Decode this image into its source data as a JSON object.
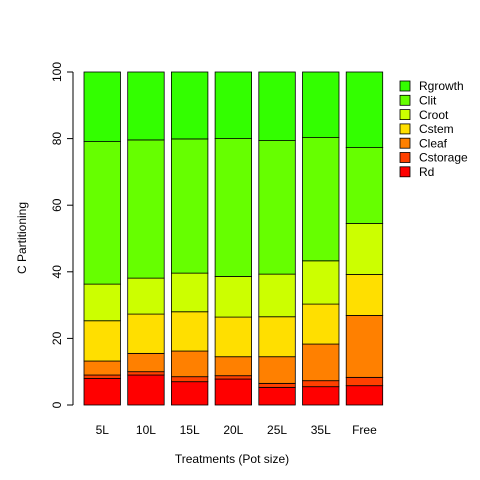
{
  "chart_data": {
    "type": "bar",
    "stacked": true,
    "xlabel": "Treatments (Pot size)",
    "ylabel": "C Partitioning",
    "ylim": [
      0,
      100
    ],
    "yticks": [
      "0",
      "20",
      "40",
      "60",
      "80",
      "100"
    ],
    "grid": false,
    "legend_position": "right",
    "categories": [
      "5L",
      "10L",
      "15L",
      "20L",
      "25L",
      "35L",
      "Free"
    ],
    "series": [
      {
        "name": "Rd",
        "color": "#ff0000",
        "values": [
          8.0,
          9.0,
          7.0,
          7.8,
          5.3,
          5.5,
          5.8
        ]
      },
      {
        "name": "Cstorage",
        "color": "#ff4000",
        "values": [
          1.0,
          1.0,
          1.5,
          1.0,
          1.2,
          1.8,
          2.5
        ]
      },
      {
        "name": "Cleaf",
        "color": "#ff8000",
        "values": [
          4.2,
          5.5,
          7.7,
          5.7,
          8.0,
          11.0,
          18.6
        ]
      },
      {
        "name": "Cstem",
        "color": "#ffdf00",
        "values": [
          12.1,
          11.8,
          11.8,
          11.9,
          12.0,
          12.0,
          12.3
        ]
      },
      {
        "name": "Croot",
        "color": "#ccff00",
        "values": [
          11.0,
          10.8,
          11.6,
          12.2,
          12.8,
          13.0,
          15.3
        ]
      },
      {
        "name": "Clit",
        "color": "#66ff00",
        "values": [
          42.8,
          41.5,
          40.3,
          41.4,
          40.1,
          37.0,
          22.8
        ]
      },
      {
        "name": "Rgrowth",
        "color": "#33ff00",
        "values": [
          20.9,
          20.4,
          20.1,
          20.0,
          20.6,
          19.7,
          22.7
        ]
      }
    ]
  }
}
